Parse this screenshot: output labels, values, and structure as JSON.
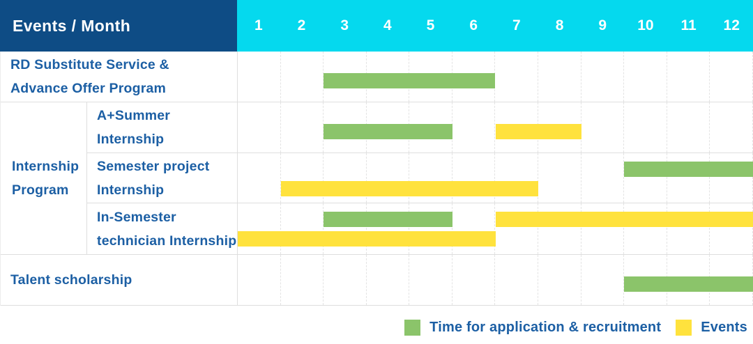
{
  "title_cell": "Events / Month",
  "months": [
    "1",
    "2",
    "3",
    "4",
    "5",
    "6",
    "7",
    "8",
    "9",
    "10",
    "11",
    "12"
  ],
  "colors": {
    "header_navy": "#0E4C85",
    "header_cyan": "#05D9EE",
    "application_green": "#8BC46A",
    "event_yellow": "#FFE23D",
    "label_blue": "#1C5FA4",
    "grid_line": "#DEDEDE"
  },
  "table": {
    "row_labels": [
      "RD Substitute Service &\nAdvance Offer Program",
      "A+Summer\nInternship",
      "Semester project\nInternship",
      "In-Semester\ntechnician Internship",
      "Talent scholarship"
    ],
    "group_label": "Internship\nProgram"
  },
  "legend": {
    "items": [
      {
        "label": "Time for application & recruitment",
        "series": "application",
        "color": "#8BC46A"
      },
      {
        "label": "Events",
        "series": "event",
        "color": "#FFE23D"
      }
    ]
  },
  "chart_data": {
    "type": "bar",
    "variant": "gantt",
    "title": "Events / Month",
    "x_axis": {
      "unit": "month",
      "ticks": [
        "1",
        "2",
        "3",
        "4",
        "5",
        "6",
        "7",
        "8",
        "9",
        "10",
        "11",
        "12"
      ],
      "range": [
        1,
        12
      ]
    },
    "grid": "vertical-dashed",
    "legend_position": "bottom-right",
    "series_colors": {
      "application": "#8BC46A",
      "event": "#FFE23D"
    },
    "rows": [
      {
        "category": "RD Substitute Service & Advance Offer Program",
        "group": null,
        "bars": [
          {
            "series": "application",
            "label": "Time for application & recruitment",
            "start_month": 3,
            "end_month": 6,
            "band": "single"
          }
        ]
      },
      {
        "category": "A+Summer Internship",
        "group": "Internship Program",
        "bars": [
          {
            "series": "application",
            "label": "Time for application & recruitment",
            "start_month": 3,
            "end_month": 5,
            "band": "single"
          },
          {
            "series": "event",
            "label": "Events",
            "start_month": 7,
            "end_month": 8,
            "band": "single"
          }
        ]
      },
      {
        "category": "Semester project Internship",
        "group": "Internship Program",
        "bars": [
          {
            "series": "application",
            "label": "Time for application & recruitment",
            "start_month": 10,
            "end_month": 12,
            "band": "upper"
          },
          {
            "series": "event",
            "label": "Events",
            "start_month": 2,
            "end_month": 7,
            "band": "lower"
          }
        ]
      },
      {
        "category": "In-Semester technician Internship",
        "group": "Internship Program",
        "bars": [
          {
            "series": "application",
            "label": "Time for application & recruitment",
            "start_month": 3,
            "end_month": 5,
            "band": "upper"
          },
          {
            "series": "event",
            "label": "Events",
            "start_month": 7,
            "end_month": 12,
            "band": "upper"
          },
          {
            "series": "event",
            "label": "Events",
            "start_month": 1,
            "end_month": 6,
            "band": "lower"
          }
        ]
      },
      {
        "category": "Talent scholarship",
        "group": null,
        "bars": [
          {
            "series": "application",
            "label": "Time for application & recruitment",
            "start_month": 10,
            "end_month": 12,
            "band": "single"
          }
        ]
      }
    ]
  }
}
